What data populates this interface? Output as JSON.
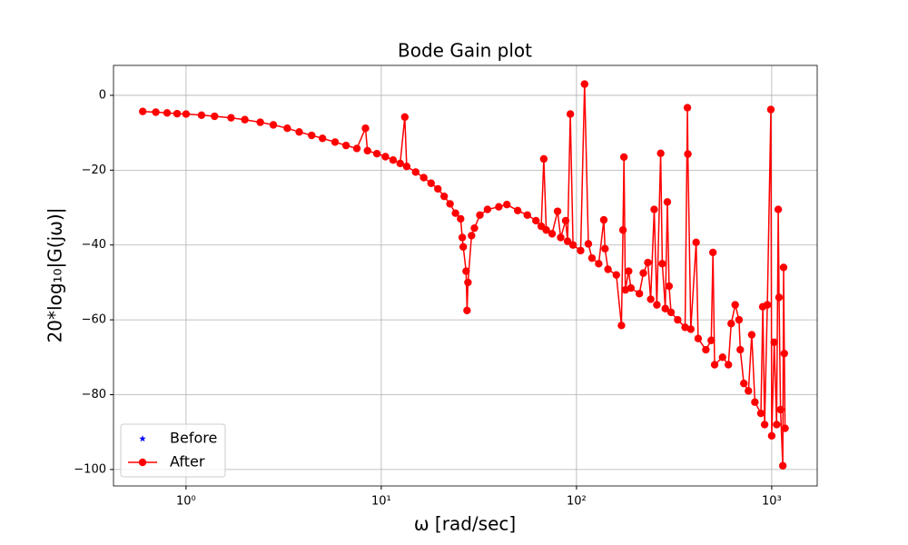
{
  "chart_data": {
    "type": "line",
    "title": "Bode Gain plot",
    "x_label": "ω [rad/sec]",
    "y_label": "20*log₁₀|G(jω)|",
    "xscale": "log",
    "grid": true,
    "legend": "lower left",
    "xlim": [
      0.425,
      1710
    ],
    "ylim": [
      -104.4,
      8.0
    ],
    "xticks": [
      {
        "value": 1,
        "label": "10⁰"
      },
      {
        "value": 10,
        "label": "10¹"
      },
      {
        "value": 100,
        "label": "10²"
      },
      {
        "value": 1000,
        "label": "10³"
      }
    ],
    "yticks": [
      {
        "value": 0,
        "label": "0"
      },
      {
        "value": -20,
        "label": "−20"
      },
      {
        "value": -40,
        "label": "−40"
      },
      {
        "value": -60,
        "label": "−60"
      },
      {
        "value": -80,
        "label": "−80"
      },
      {
        "value": -100,
        "label": "−100"
      }
    ],
    "x": [
      0.6,
      0.7,
      0.8,
      0.9,
      1.0,
      1.2,
      1.4,
      1.7,
      2.0,
      2.4,
      2.8,
      3.3,
      3.8,
      4.4,
      5.0,
      5.8,
      6.6,
      7.5,
      8.3,
      8.5,
      9.5,
      10.5,
      11.5,
      12.5,
      13.2,
      13.5,
      15,
      16.5,
      18,
      19.5,
      21,
      22.5,
      24,
      25.5,
      26,
      26.3,
      27.2,
      27.5,
      27.8,
      29,
      30,
      32,
      35,
      40,
      44,
      50,
      56,
      62,
      66,
      68,
      70,
      75,
      80,
      83,
      88,
      90,
      93,
      96,
      105,
      110,
      115,
      120,
      130,
      138,
      140,
      145,
      160,
      170,
      173,
      175,
      178,
      185,
      190,
      210,
      220,
      232,
      240,
      250,
      258,
      270,
      275,
      285,
      292,
      298,
      305,
      330,
      360,
      370,
      372,
      385,
      410,
      420,
      460,
      490,
      500,
      510,
      560,
      600,
      620,
      650,
      680,
      690,
      720,
      760,
      790,
      820,
      880,
      900,
      920,
      950,
      990,
      1000,
      1030,
      1060,
      1080,
      1090,
      1110,
      1140,
      1150,
      1160,
      1170
    ],
    "series": [
      {
        "name": "Before",
        "color": "#0000ff",
        "marker": "star",
        "values": [
          -4.3,
          -4.5,
          -4.7,
          -4.9,
          -5.0,
          -5.3,
          -5.6,
          -6.0,
          -6.5,
          -7.2,
          -7.9,
          -8.8,
          -9.8,
          -10.7,
          -11.5,
          -12.5,
          -13.4,
          -14.2,
          -8.8,
          -14.8,
          -15.6,
          -16.4,
          -17.3,
          -18.2,
          -5.8,
          -19.0,
          -20.5,
          -22,
          -23.5,
          -25,
          -27,
          -29,
          -31.5,
          -33,
          -38,
          -40.5,
          -47,
          -57.5,
          -50,
          -37.5,
          -35.5,
          -32,
          -30.5,
          -29.8,
          -29.2,
          -30.8,
          -32,
          -33.5,
          -35,
          -17,
          -36,
          -37,
          -31,
          -38,
          -33.5,
          -39,
          -5,
          -40,
          -41.5,
          3,
          -39.7,
          -43.5,
          -45,
          -33.3,
          -41,
          -46.5,
          -48,
          -61.5,
          -36,
          -16.5,
          -52,
          -47,
          -51.5,
          -53,
          -47.5,
          -44.7,
          -54.5,
          -30.5,
          -56,
          -15.5,
          -45,
          -57,
          -28.5,
          -51,
          -58,
          -60,
          -62,
          -3.3,
          -15.7,
          -62.5,
          -39.3,
          -65,
          -68,
          -65.5,
          -42,
          -72,
          -70,
          -72,
          -61,
          -56,
          -60,
          -68,
          -77,
          -79,
          -64,
          -82,
          -85,
          -56.5,
          -88,
          -56,
          -3.8,
          -91,
          -66,
          -88,
          -30.5,
          -54,
          -84,
          -99,
          -46,
          -69,
          -89
        ]
      },
      {
        "name": "After",
        "color": "#ff0000",
        "marker": "circle",
        "values": [
          -4.3,
          -4.5,
          -4.7,
          -4.9,
          -5.0,
          -5.3,
          -5.6,
          -6.0,
          -6.5,
          -7.2,
          -7.9,
          -8.8,
          -9.8,
          -10.7,
          -11.5,
          -12.5,
          -13.4,
          -14.2,
          -8.8,
          -14.8,
          -15.6,
          -16.4,
          -17.3,
          -18.2,
          -5.8,
          -19.0,
          -20.5,
          -22,
          -23.5,
          -25,
          -27,
          -29,
          -31.5,
          -33,
          -38,
          -40.5,
          -47,
          -57.5,
          -50,
          -37.5,
          -35.5,
          -32,
          -30.5,
          -29.8,
          -29.2,
          -30.8,
          -32,
          -33.5,
          -35,
          -17,
          -36,
          -37,
          -31,
          -38,
          -33.5,
          -39,
          -5,
          -40,
          -41.5,
          3,
          -39.7,
          -43.5,
          -45,
          -33.3,
          -41,
          -46.5,
          -48,
          -61.5,
          -36,
          -16.5,
          -52,
          -47,
          -51.5,
          -53,
          -47.5,
          -44.7,
          -54.5,
          -30.5,
          -56,
          -15.5,
          -45,
          -57,
          -28.5,
          -51,
          -58,
          -60,
          -62,
          -3.3,
          -15.7,
          -62.5,
          -39.3,
          -65,
          -68,
          -65.5,
          -42,
          -72,
          -70,
          -72,
          -61,
          -56,
          -60,
          -68,
          -77,
          -79,
          -64,
          -82,
          -85,
          -56.5,
          -88,
          -56,
          -3.8,
          -91,
          -66,
          -88,
          -30.5,
          -54,
          -84,
          -99,
          -46,
          -69,
          -89
        ]
      }
    ]
  }
}
